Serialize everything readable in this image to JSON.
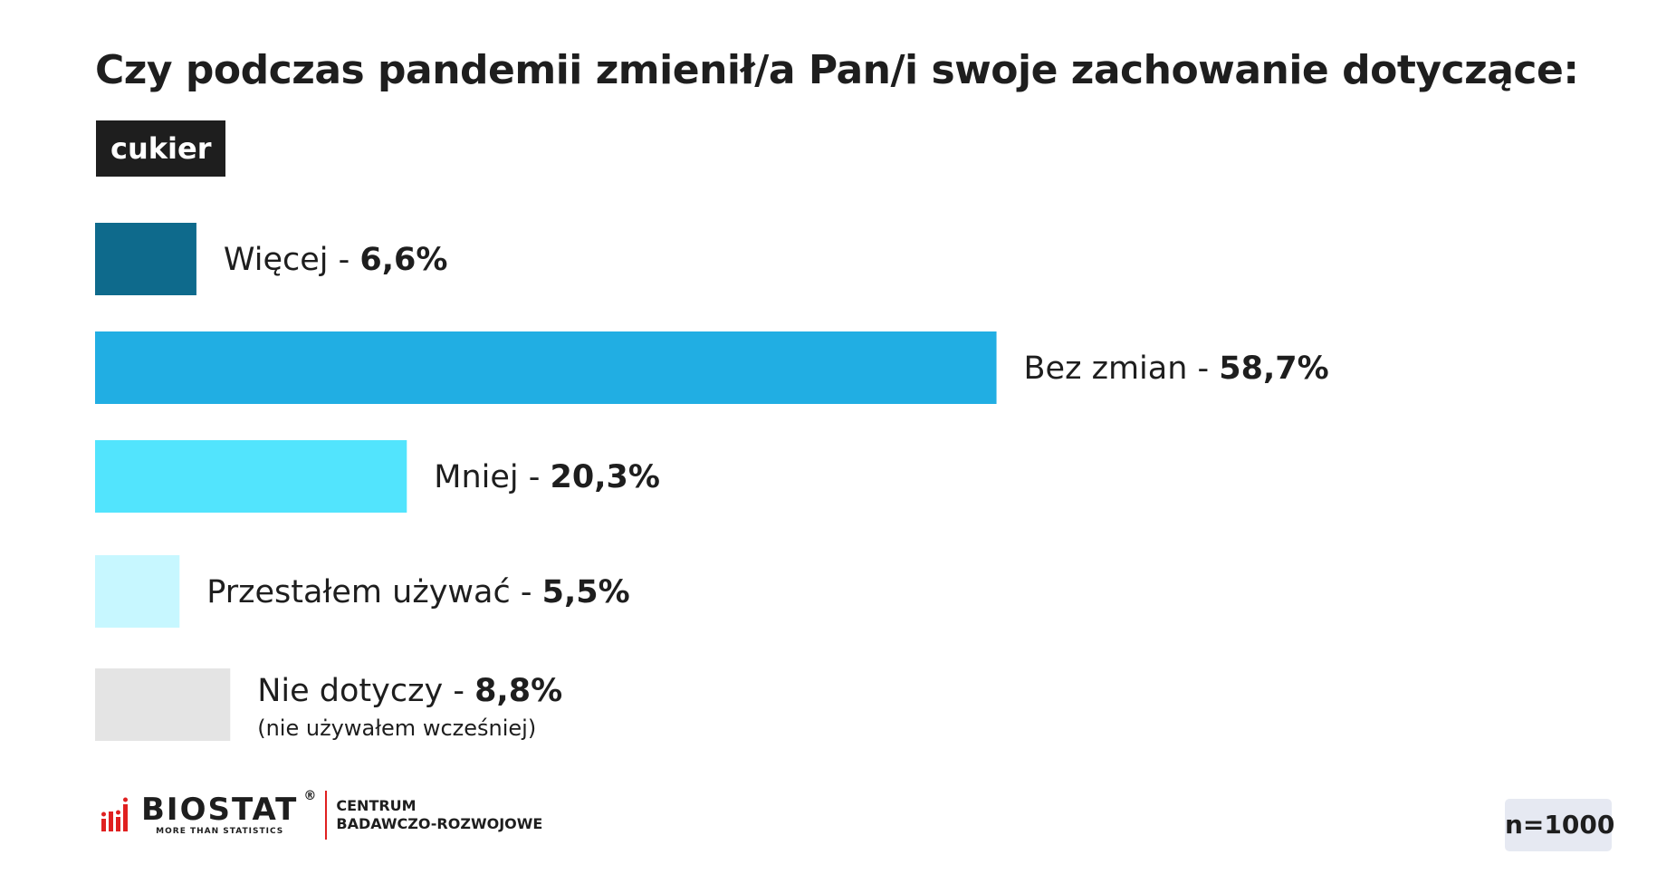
{
  "title": "Czy podczas pandemii zmienił/a Pan/i swoje zachowanie dotyczące:",
  "tag": "cukier",
  "chart_data": {
    "type": "bar",
    "orientation": "horizontal",
    "categories": [
      "Więcej",
      "Bez zmian",
      "Mniej",
      "Przestałem używać",
      "Nie dotyczy"
    ],
    "values": [
      6.6,
      58.7,
      20.3,
      5.5,
      8.8
    ],
    "value_labels": [
      "6,6%",
      "58,7%",
      "20,3%",
      "5,5%",
      "8,8%"
    ],
    "notes": [
      "",
      "",
      "",
      "",
      "(nie używałem wcześniej)"
    ],
    "colors": [
      "#0e6a8c",
      "#21aee3",
      "#52e4fd",
      "#c7f7ff",
      "#e4e4e4"
    ],
    "unit": "%"
  },
  "logo": {
    "name": "BIOSTAT",
    "registered": "®",
    "tagline": "MORE THAN STATISTICS",
    "center_line1": "CENTRUM",
    "center_line2": "BADAWCZO-ROZWOJOWE",
    "accent": "#e02020"
  },
  "sample_size": "n=1000"
}
